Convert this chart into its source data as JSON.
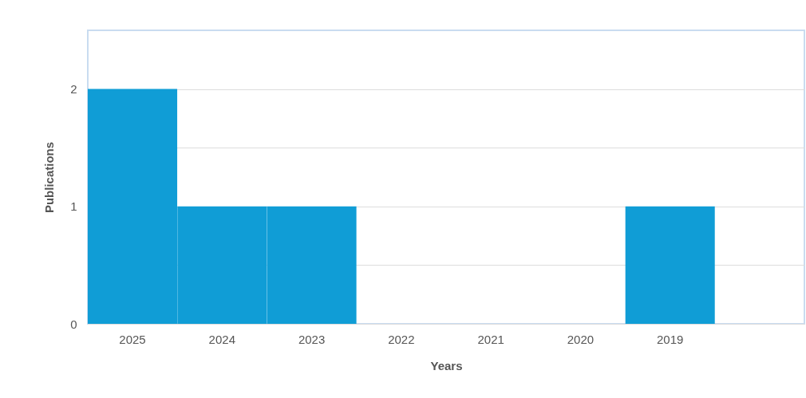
{
  "chart_data": {
    "type": "bar",
    "xlabel": "Years",
    "ylabel": "Publications",
    "categories": [
      "2025",
      "2024",
      "2023",
      "2022",
      "2021",
      "2020",
      "2019",
      null
    ],
    "values": [
      2,
      1,
      1,
      0,
      0,
      0,
      1,
      0
    ],
    "color": "#109dd6",
    "ylim": [
      0,
      2.5
    ],
    "yticks": [
      0,
      {
        "value": 0.5,
        "label": null
      },
      1,
      {
        "value": 1.5,
        "label": null
      },
      2
    ],
    "grid": true
  }
}
